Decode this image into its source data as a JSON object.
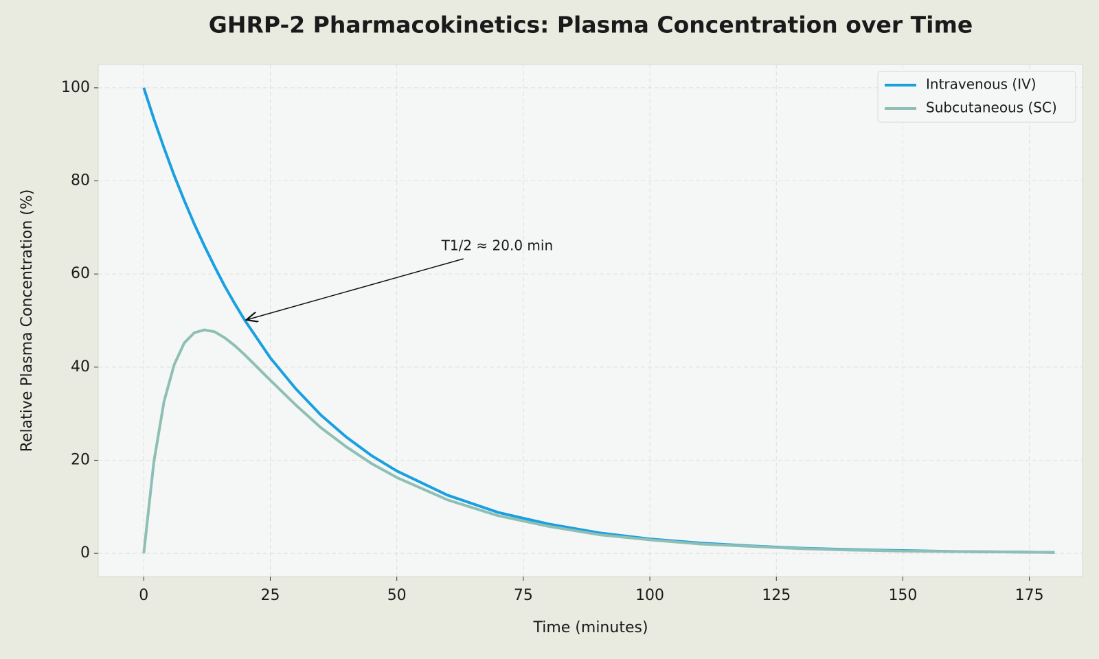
{
  "chart_data": {
    "type": "line",
    "title": "GHRP-2 Pharmacokinetics: Plasma Concentration over Time",
    "x_label": "Time (minutes)",
    "y_label": "Relative Plasma Concentration (%)",
    "x": [
      0,
      2,
      4,
      6,
      8,
      10,
      12,
      14,
      16,
      18,
      20,
      25,
      30,
      35,
      40,
      45,
      50,
      60,
      70,
      80,
      90,
      100,
      110,
      120,
      130,
      140,
      150,
      160,
      170,
      180
    ],
    "series": [
      {
        "name": "Intravenous (IV)",
        "color": "#1a9fe0",
        "values": [
          100,
          93.3,
          87.1,
          81.2,
          75.8,
          70.7,
          66.0,
          61.6,
          57.4,
          53.6,
          50.0,
          42.0,
          35.4,
          29.7,
          25.0,
          21.0,
          17.7,
          12.5,
          8.8,
          6.3,
          4.4,
          3.1,
          2.2,
          1.6,
          1.1,
          0.8,
          0.6,
          0.4,
          0.3,
          0.2
        ]
      },
      {
        "name": "Subcutaneous (SC)",
        "color": "#8fbfb4",
        "values": [
          0,
          19.7,
          32.6,
          40.5,
          45.2,
          47.4,
          48.0,
          47.6,
          46.3,
          44.6,
          42.6,
          37.2,
          31.9,
          27.0,
          22.9,
          19.3,
          16.3,
          11.5,
          8.1,
          5.8,
          4.0,
          2.9,
          2.0,
          1.5,
          1.0,
          0.7,
          0.5,
          0.4,
          0.3,
          0.2
        ]
      }
    ],
    "annotation": {
      "text": "T1/2 ≈ 20.0 min",
      "x": 20,
      "y": 50
    },
    "xlim": [
      -9,
      185.5
    ],
    "ylim": [
      -5,
      105
    ],
    "xticks": [
      0,
      25,
      50,
      75,
      100,
      125,
      150,
      175
    ],
    "yticks": [
      0,
      20,
      40,
      60,
      80,
      100
    ],
    "grid": true,
    "legend": "upper right"
  }
}
